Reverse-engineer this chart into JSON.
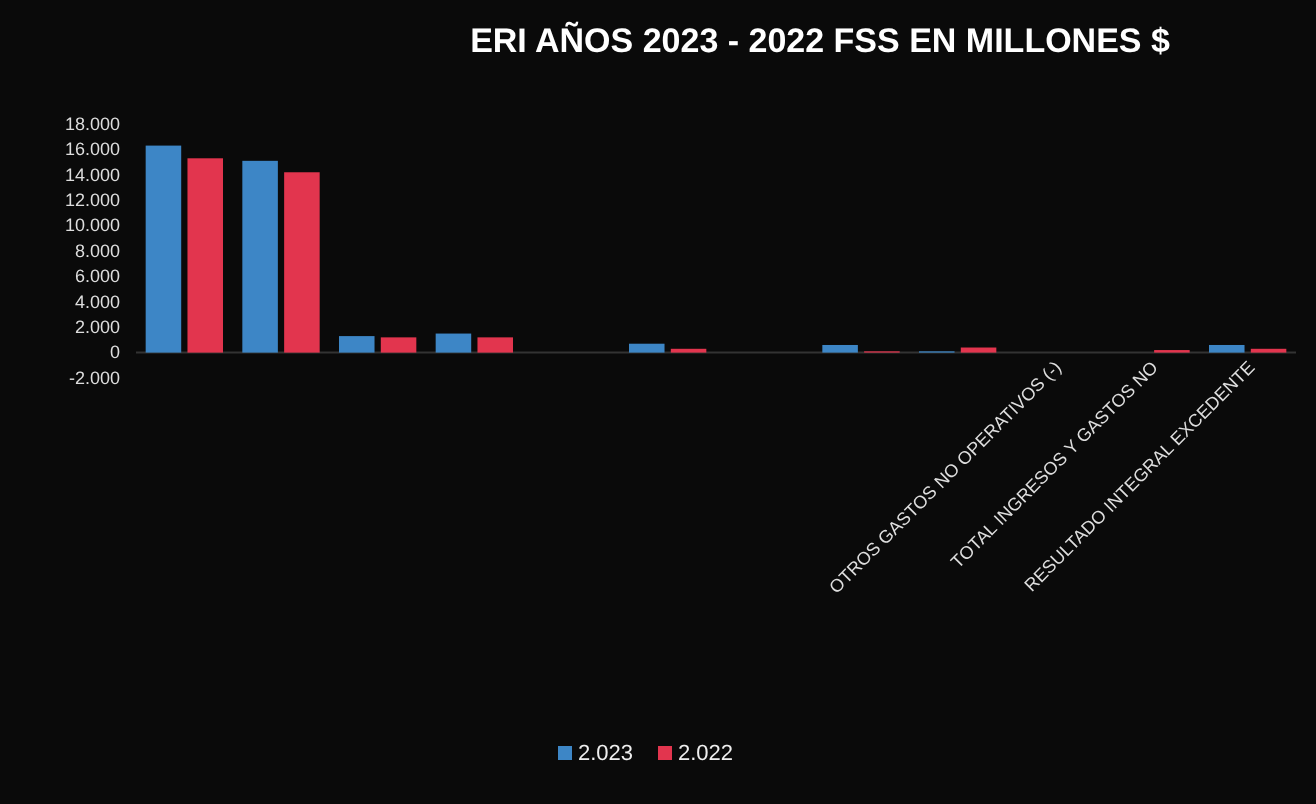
{
  "chart_data": {
    "type": "bar",
    "title": "ERI  AÑOS 2023   - 2022 FSS EN MILLONES $",
    "categories": [
      null,
      null,
      null,
      null,
      null,
      null,
      null,
      null,
      null,
      "OTROS GASTOS NO OPERATIVOS (-)",
      "TOTAL INGRESOS Y GASTOS NO",
      "RESULTADO INTEGRAL EXCEDENTE"
    ],
    "series": [
      {
        "name": "2.023",
        "color": "#3d86c6",
        "values": [
          16300,
          15100,
          1300,
          1500,
          0,
          700,
          0,
          600,
          100,
          0,
          0,
          600
        ]
      },
      {
        "name": "2.022",
        "color": "#e2354e",
        "values": [
          15300,
          14200,
          1200,
          1200,
          0,
          300,
          0,
          100,
          400,
          0,
          200,
          300
        ]
      }
    ],
    "ylim": [
      -2000,
      18000
    ],
    "yticks": [
      {
        "value": -2000,
        "label": "-2.000"
      },
      0,
      {
        "value": 2000,
        "label": "2.000"
      },
      {
        "value": 4000,
        "label": "4.000"
      },
      {
        "value": 6000,
        "label": "6.000"
      },
      {
        "value": 8000,
        "label": "8.000"
      },
      {
        "value": 10000,
        "label": "10.000"
      },
      {
        "value": 12000,
        "label": "12.000"
      },
      {
        "value": 14000,
        "label": "14.000"
      },
      {
        "value": 16000,
        "label": "16.000"
      },
      {
        "value": 18000,
        "label": "18.000"
      }
    ],
    "legend": "bottom"
  }
}
